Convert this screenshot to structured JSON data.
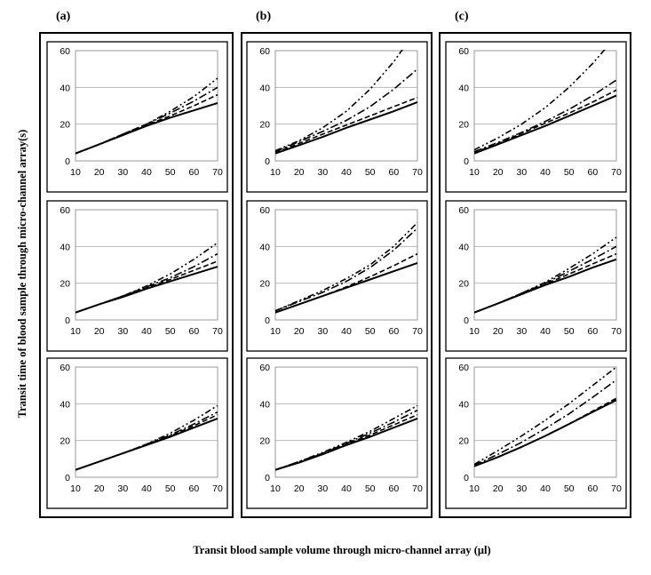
{
  "figure": {
    "column_labels": [
      "(a)",
      "(b)",
      "(c)"
    ],
    "ylabel": "Transit time of blood sample through micro-channel array(s)",
    "xlabel": "Transit blood sample volume through micro-channel array (μl)"
  },
  "styles": {
    "line_color": "#000000",
    "grid_color": "#b8b8b8",
    "dash_patterns": [
      "",
      "6,3",
      "9,3,2,3",
      "7,3,2,3,2,3"
    ]
  },
  "chart_data": [
    {
      "type": "line",
      "column": "(a)",
      "row": 1,
      "xlim": [
        10,
        70
      ],
      "ylim": [
        0,
        60
      ],
      "xticks": [
        "10",
        "20",
        "30",
        "40",
        "50",
        "60",
        "70"
      ],
      "yticks": [
        "0",
        "20",
        "40",
        "60"
      ],
      "grid": true,
      "x": [
        10,
        20,
        30,
        40,
        50,
        60,
        70
      ],
      "series": [
        {
          "values": [
            4,
            9,
            14,
            19,
            23.5,
            27.5,
            31.5
          ]
        },
        {
          "values": [
            4,
            9,
            14,
            19.5,
            24.5,
            30,
            36
          ]
        },
        {
          "values": [
            4,
            9,
            14.5,
            20,
            26,
            32.5,
            40
          ]
        },
        {
          "values": [
            4,
            9,
            14.5,
            20,
            27,
            35,
            45
          ]
        }
      ]
    },
    {
      "type": "line",
      "column": "(a)",
      "row": 2,
      "xlim": [
        10,
        70
      ],
      "ylim": [
        0,
        60
      ],
      "xticks": [
        "10",
        "20",
        "30",
        "40",
        "50",
        "60",
        "70"
      ],
      "yticks": [
        "0",
        "20",
        "40",
        "60"
      ],
      "grid": true,
      "x": [
        10,
        20,
        30,
        40,
        50,
        60,
        70
      ],
      "series": [
        {
          "values": [
            4,
            8.5,
            12.5,
            17,
            21,
            25,
            29
          ]
        },
        {
          "values": [
            4,
            8.5,
            13,
            17.5,
            22,
            27,
            32
          ]
        },
        {
          "values": [
            4,
            8.5,
            13,
            18,
            23,
            29,
            36
          ]
        },
        {
          "values": [
            4,
            8.5,
            13,
            18.5,
            25,
            33,
            42
          ]
        }
      ]
    },
    {
      "type": "line",
      "column": "(a)",
      "row": 3,
      "xlim": [
        10,
        70
      ],
      "ylim": [
        0,
        60
      ],
      "xticks": [
        "10",
        "20",
        "30",
        "40",
        "50",
        "60",
        "70"
      ],
      "yticks": [
        "0",
        "20",
        "40",
        "60"
      ],
      "grid": true,
      "x": [
        10,
        20,
        30,
        40,
        50,
        60,
        70
      ],
      "series": [
        {
          "values": [
            4,
            8.5,
            13,
            17.5,
            22,
            27,
            32
          ]
        },
        {
          "values": [
            4,
            8.5,
            13,
            17.5,
            22.5,
            28,
            34
          ]
        },
        {
          "values": [
            4,
            8.5,
            13,
            18,
            23,
            29,
            35.5
          ]
        },
        {
          "values": [
            4,
            8.5,
            13,
            18,
            24,
            31,
            39
          ]
        }
      ]
    },
    {
      "type": "line",
      "column": "(b)",
      "row": 1,
      "xlim": [
        10,
        70
      ],
      "ylim": [
        0,
        60
      ],
      "xticks": [
        "10",
        "20",
        "30",
        "40",
        "50",
        "60",
        "70"
      ],
      "yticks": [
        "0",
        "20",
        "40",
        "60"
      ],
      "grid": true,
      "x": [
        10,
        20,
        30,
        40,
        50,
        60,
        70
      ],
      "series": [
        {
          "values": [
            4,
            8.5,
            13,
            18,
            22.5,
            27,
            32
          ]
        },
        {
          "values": [
            4.5,
            9.5,
            14.5,
            19.5,
            24.5,
            29.5,
            34.5
          ]
        },
        {
          "values": [
            5,
            10.5,
            16,
            22,
            29.5,
            39,
            50
          ]
        },
        {
          "values": [
            5.5,
            11,
            18,
            27,
            39,
            54,
            72
          ]
        }
      ]
    },
    {
      "type": "line",
      "column": "(b)",
      "row": 2,
      "xlim": [
        10,
        70
      ],
      "ylim": [
        0,
        60
      ],
      "xticks": [
        "10",
        "20",
        "30",
        "40",
        "50",
        "60",
        "70"
      ],
      "yticks": [
        "0",
        "20",
        "40",
        "60"
      ],
      "grid": true,
      "x": [
        10,
        20,
        30,
        40,
        50,
        60,
        70
      ],
      "series": [
        {
          "values": [
            4,
            8.5,
            13,
            17.5,
            22,
            26.5,
            31
          ]
        },
        {
          "values": [
            4,
            8.5,
            13,
            18,
            23.5,
            29.5,
            36
          ]
        },
        {
          "values": [
            5,
            10,
            15,
            21,
            28.5,
            38,
            50
          ]
        },
        {
          "values": [
            5,
            10.5,
            16,
            22.5,
            30,
            40,
            53
          ]
        }
      ]
    },
    {
      "type": "line",
      "column": "(b)",
      "row": 3,
      "xlim": [
        10,
        70
      ],
      "ylim": [
        0,
        60
      ],
      "xticks": [
        "10",
        "20",
        "30",
        "40",
        "50",
        "60",
        "70"
      ],
      "yticks": [
        "0",
        "20",
        "40",
        "60"
      ],
      "grid": true,
      "x": [
        10,
        20,
        30,
        40,
        50,
        60,
        70
      ],
      "series": [
        {
          "values": [
            4,
            8,
            12.5,
            17.5,
            22,
            27,
            32
          ]
        },
        {
          "values": [
            4,
            8,
            13,
            18,
            23,
            28.5,
            34
          ]
        },
        {
          "values": [
            4,
            8.5,
            13,
            18.5,
            24,
            30,
            36.5
          ]
        },
        {
          "values": [
            4,
            8.5,
            13.5,
            19,
            25,
            32,
            39
          ]
        }
      ]
    },
    {
      "type": "line",
      "column": "(c)",
      "row": 1,
      "xlim": [
        10,
        70
      ],
      "ylim": [
        0,
        60
      ],
      "xticks": [
        "10",
        "20",
        "30",
        "40",
        "50",
        "60",
        "70"
      ],
      "yticks": [
        "0",
        "20",
        "40",
        "60"
      ],
      "grid": true,
      "x": [
        10,
        20,
        30,
        40,
        50,
        60,
        70
      ],
      "series": [
        {
          "values": [
            4,
            9,
            14,
            19,
            24.5,
            30,
            35.5
          ]
        },
        {
          "values": [
            4.5,
            9.5,
            15,
            20.5,
            26,
            32,
            38.5
          ]
        },
        {
          "values": [
            5,
            10,
            15.5,
            21.5,
            28,
            35.5,
            44
          ]
        },
        {
          "values": [
            6,
            12.5,
            20,
            29,
            40,
            53,
            68
          ]
        }
      ]
    },
    {
      "type": "line",
      "column": "(c)",
      "row": 2,
      "xlim": [
        10,
        70
      ],
      "ylim": [
        0,
        60
      ],
      "xticks": [
        "10",
        "20",
        "30",
        "40",
        "50",
        "60",
        "70"
      ],
      "yticks": [
        "0",
        "20",
        "40",
        "60"
      ],
      "grid": true,
      "x": [
        10,
        20,
        30,
        40,
        50,
        60,
        70
      ],
      "series": [
        {
          "values": [
            4,
            9,
            14,
            19,
            23.5,
            28.5,
            33
          ]
        },
        {
          "values": [
            4,
            9,
            14,
            19.5,
            25,
            30.5,
            36
          ]
        },
        {
          "values": [
            4,
            9,
            14.5,
            20,
            26.5,
            33,
            40
          ]
        },
        {
          "values": [
            4,
            9,
            14.5,
            20.5,
            28,
            36,
            45
          ]
        }
      ]
    },
    {
      "type": "line",
      "column": "(c)",
      "row": 3,
      "xlim": [
        10,
        70
      ],
      "ylim": [
        0,
        60
      ],
      "xticks": [
        "10",
        "20",
        "30",
        "40",
        "50",
        "60",
        "70"
      ],
      "yticks": [
        "0",
        "20",
        "40",
        "60"
      ],
      "grid": true,
      "x": [
        10,
        20,
        30,
        40,
        50,
        60,
        70
      ],
      "series": [
        {
          "values": [
            6,
            11,
            16.5,
            22.5,
            29,
            35.5,
            42
          ]
        },
        {
          "values": [
            6,
            11,
            16.5,
            22.5,
            29,
            36,
            43
          ]
        },
        {
          "values": [
            6.5,
            12.5,
            19,
            26.5,
            34.5,
            43.5,
            53
          ]
        },
        {
          "values": [
            7,
            14.5,
            22.5,
            31,
            40,
            50,
            60
          ]
        }
      ]
    }
  ]
}
